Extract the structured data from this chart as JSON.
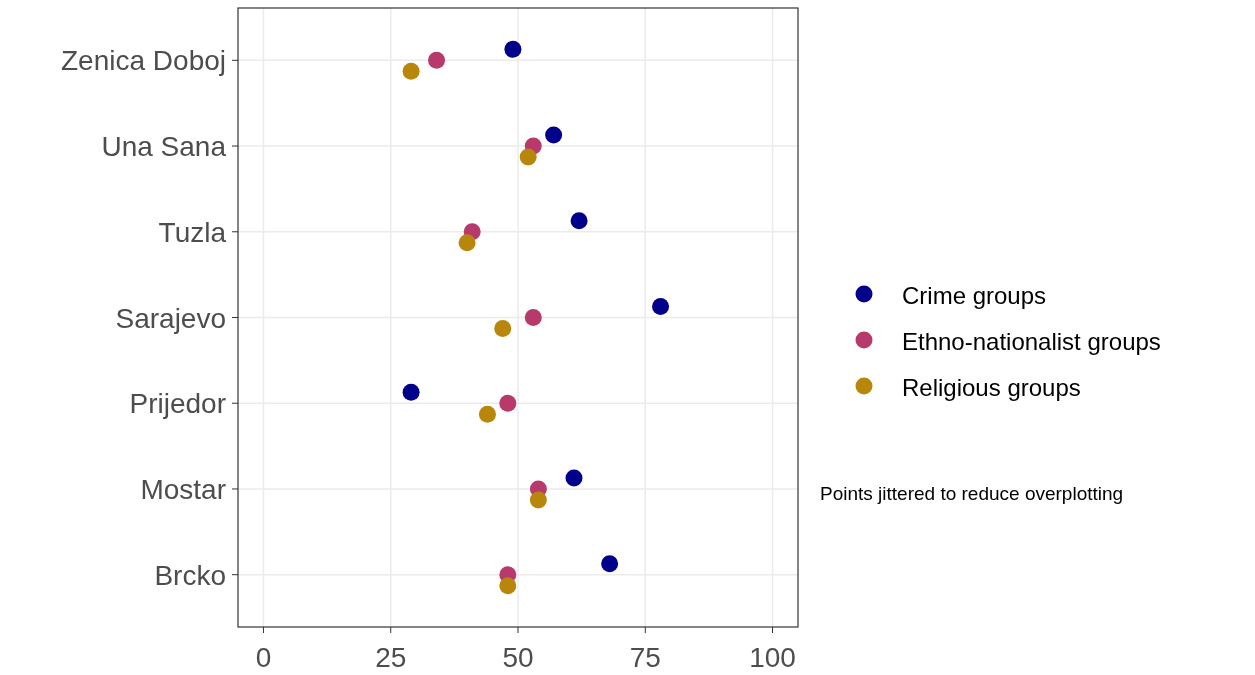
{
  "chart_data": {
    "type": "scatter",
    "orientation": "horizontal",
    "categories": [
      "Zenica Doboj",
      "Una Sana",
      "Tuzla",
      "Sarajevo",
      "Prijedor",
      "Mostar",
      "Brcko"
    ],
    "series": [
      {
        "name": "Crime groups",
        "color": "#00008b",
        "values": [
          49,
          57,
          62,
          78,
          29,
          61,
          68
        ]
      },
      {
        "name": "Ethno-nationalist groups",
        "color": "#b8396b",
        "values": [
          34,
          53,
          41,
          53,
          48,
          54,
          48
        ]
      },
      {
        "name": "Religious groups",
        "color": "#b8860b",
        "values": [
          29,
          52,
          40,
          47,
          44,
          54,
          48
        ]
      }
    ],
    "xlim": [
      -5,
      105
    ],
    "xticks": [
      0,
      25,
      50,
      75,
      100
    ],
    "grid": true,
    "legend": "right",
    "marker": "circle",
    "annotations": [
      "Points jittered to reduce overplotting"
    ]
  }
}
